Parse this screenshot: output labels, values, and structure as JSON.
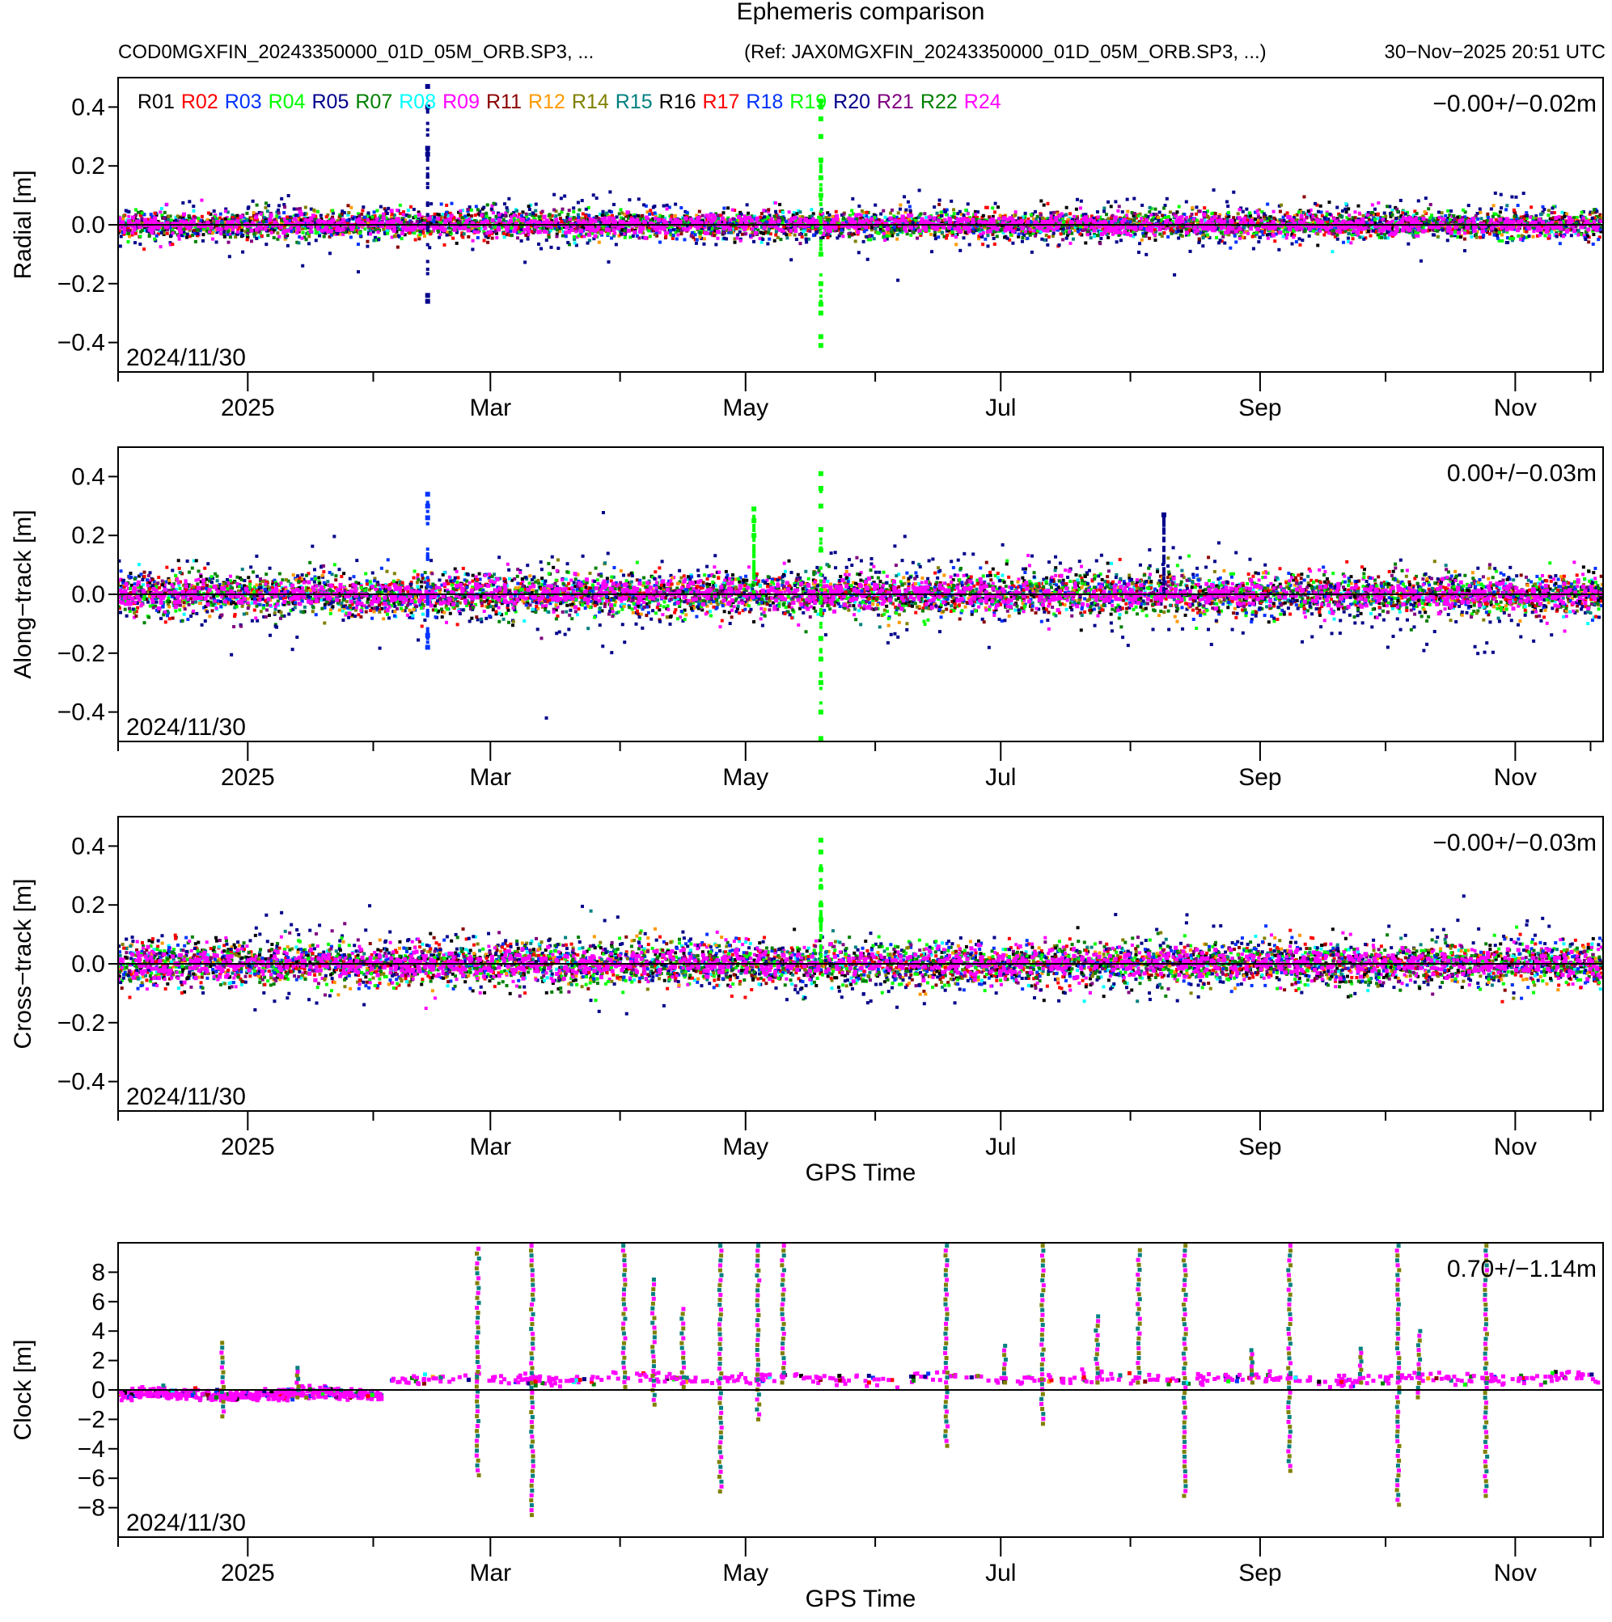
{
  "header": {
    "title": "Ephemeris comparison",
    "left_files": "COD0MGXFIN_20243350000_01D_05M_ORB.SP3, ...",
    "ref_files": "(Ref: JAX0MGXFIN_20243350000_01D_05M_ORB.SP3, ...)",
    "timestamp": "30−Nov−2025 20:51 UTC"
  },
  "legend": [
    {
      "label": "R01",
      "color": "#000000"
    },
    {
      "label": "R02",
      "color": "#ff0000"
    },
    {
      "label": "R03",
      "color": "#0033ff"
    },
    {
      "label": "R04",
      "color": "#00ff00"
    },
    {
      "label": "R05",
      "color": "#00008b"
    },
    {
      "label": "R07",
      "color": "#008000"
    },
    {
      "label": "R08",
      "color": "#00ffff"
    },
    {
      "label": "R09",
      "color": "#ff00ff"
    },
    {
      "label": "R11",
      "color": "#8b0000"
    },
    {
      "label": "R12",
      "color": "#ff9900"
    },
    {
      "label": "R14",
      "color": "#808000"
    },
    {
      "label": "R15",
      "color": "#008080"
    },
    {
      "label": "R16",
      "color": "#000000"
    },
    {
      "label": "R17",
      "color": "#ff0000"
    },
    {
      "label": "R18",
      "color": "#0033ff"
    },
    {
      "label": "R19",
      "color": "#00ff00"
    },
    {
      "label": "R20",
      "color": "#00008b"
    },
    {
      "label": "R21",
      "color": "#800080"
    },
    {
      "label": "R22",
      "color": "#008000"
    },
    {
      "label": "R24",
      "color": "#ff00ff"
    }
  ],
  "chart_data": [
    {
      "type": "scatter",
      "id": "radial",
      "ylabel": "Radial [m]",
      "xlabel": "",
      "ylim": [
        -0.5,
        0.5
      ],
      "yticks": [
        -0.4,
        -0.2,
        0.0,
        0.2,
        0.4
      ],
      "ytick_labels": [
        "−0.4",
        "−0.2",
        "0.0",
        "0.2",
        "0.4"
      ],
      "xlim": [
        0,
        355
      ],
      "x_ticks_minor": [
        0,
        61,
        120,
        181,
        242,
        303,
        352
      ],
      "x_ticks_major": [
        {
          "x": 31,
          "label": "2025"
        },
        {
          "x": 89,
          "label": "Mar"
        },
        {
          "x": 150,
          "label": "May"
        },
        {
          "x": 211,
          "label": "Jul"
        },
        {
          "x": 273,
          "label": "Sep"
        },
        {
          "x": 334,
          "label": "Nov"
        }
      ],
      "date_label": "2024/11/30",
      "stats": "−0.00+/−0.02m",
      "show_legend": true,
      "noise": {
        "base_sigma": 0.022,
        "r05_sigma": 0.045,
        "r05_bias": 0.0
      },
      "outliers": [
        {
          "x": 74,
          "values": [
            0.47,
            0.4,
            0.26,
            0.24,
            -0.24,
            -0.26
          ],
          "color": "#00008b"
        },
        {
          "x": 168,
          "values": [
            0.42,
            0.4,
            0.36,
            0.3,
            0.22,
            0.16,
            0.1,
            -0.1,
            -0.2,
            -0.27,
            -0.3,
            -0.38,
            -0.41
          ],
          "color": "#00ff00"
        }
      ]
    },
    {
      "type": "scatter",
      "id": "along",
      "ylabel": "Along−track [m]",
      "xlabel": "",
      "ylim": [
        -0.5,
        0.5
      ],
      "yticks": [
        -0.4,
        -0.2,
        0.0,
        0.2,
        0.4
      ],
      "ytick_labels": [
        "−0.4",
        "−0.2",
        "0.0",
        "0.2",
        "0.4"
      ],
      "xlim": [
        0,
        355
      ],
      "x_ticks_minor": [
        0,
        61,
        120,
        181,
        242,
        303,
        352
      ],
      "x_ticks_major": [
        {
          "x": 31,
          "label": "2025"
        },
        {
          "x": 89,
          "label": "Mar"
        },
        {
          "x": 150,
          "label": "May"
        },
        {
          "x": 211,
          "label": "Jul"
        },
        {
          "x": 273,
          "label": "Sep"
        },
        {
          "x": 334,
          "label": "Nov"
        }
      ],
      "date_label": "2024/11/30",
      "stats": "0.00+/−0.03m",
      "show_legend": false,
      "noise": {
        "base_sigma": 0.035,
        "r05_sigma": 0.07,
        "r05_bias": -0.03
      },
      "outliers": [
        {
          "x": 74,
          "values": [
            0.34,
            0.3,
            0.26,
            -0.14,
            -0.18
          ],
          "color": "#0033ff"
        },
        {
          "x": 168,
          "values": [
            0.41,
            0.36,
            0.3,
            0.22,
            0.15,
            -0.15,
            -0.22,
            -0.3,
            -0.4,
            -0.49
          ],
          "color": "#00ff00"
        },
        {
          "x": 152,
          "values": [
            0.29,
            0.25,
            0.2
          ],
          "color": "#00ff00"
        },
        {
          "x": 250,
          "values": [
            0.27
          ],
          "color": "#00008b"
        }
      ]
    },
    {
      "type": "scatter",
      "id": "cross",
      "ylabel": "Cross−track [m]",
      "xlabel": "GPS Time",
      "ylim": [
        -0.5,
        0.5
      ],
      "yticks": [
        -0.4,
        -0.2,
        0.0,
        0.2,
        0.4
      ],
      "ytick_labels": [
        "−0.4",
        "−0.2",
        "0.0",
        "0.2",
        "0.4"
      ],
      "xlim": [
        0,
        355
      ],
      "x_ticks_minor": [
        0,
        61,
        120,
        181,
        242,
        303,
        352
      ],
      "x_ticks_major": [
        {
          "x": 31,
          "label": "2025"
        },
        {
          "x": 89,
          "label": "Mar"
        },
        {
          "x": 150,
          "label": "May"
        },
        {
          "x": 211,
          "label": "Jul"
        },
        {
          "x": 273,
          "label": "Sep"
        },
        {
          "x": 334,
          "label": "Nov"
        }
      ],
      "date_label": "2024/11/30",
      "stats": "−0.00+/−0.03m",
      "show_legend": false,
      "noise": {
        "base_sigma": 0.035,
        "r05_sigma": 0.06,
        "r05_bias": 0.02
      },
      "outliers": [
        {
          "x": 168,
          "values": [
            0.42,
            0.38,
            0.32,
            0.26,
            0.2,
            0.15
          ],
          "color": "#00ff00"
        }
      ]
    },
    {
      "type": "scatter",
      "id": "clock",
      "ylabel": "Clock [m]",
      "xlabel": "GPS Time",
      "ylim": [
        -10,
        10
      ],
      "yticks": [
        -8,
        -6,
        -4,
        -2,
        0,
        2,
        4,
        6,
        8
      ],
      "ytick_labels": [
        "−8",
        "−6",
        "−4",
        "−2",
        "0",
        "2",
        "4",
        "6",
        "8"
      ],
      "xlim": [
        0,
        355
      ],
      "x_ticks_minor": [
        0,
        61,
        120,
        181,
        242,
        303,
        352
      ],
      "x_ticks_major": [
        {
          "x": 31,
          "label": "2025"
        },
        {
          "x": 89,
          "label": "Mar"
        },
        {
          "x": 150,
          "label": "May"
        },
        {
          "x": 211,
          "label": "Jul"
        },
        {
          "x": 273,
          "label": "Sep"
        },
        {
          "x": 334,
          "label": "Nov"
        }
      ],
      "date_label": "2024/11/30",
      "stats": "0.70+/−1.14m",
      "show_legend": false,
      "clock": {
        "baseline_segments": [
          {
            "x0": 0,
            "x1": 63,
            "y": -0.3
          },
          {
            "x0": 63,
            "x1": 355,
            "y": 0.75
          }
        ],
        "spikes": [
          {
            "x": 25,
            "min": -1.8,
            "max": 3.2
          },
          {
            "x": 43,
            "min": -0.5,
            "max": 1.5
          },
          {
            "x": 86,
            "min": -5.8,
            "max": 9.6
          },
          {
            "x": 99,
            "min": -8.5,
            "max": 9.8
          },
          {
            "x": 121,
            "min": 0.2,
            "max": 9.8
          },
          {
            "x": 128,
            "min": -1.0,
            "max": 7.5
          },
          {
            "x": 135,
            "min": 0.2,
            "max": 5.5
          },
          {
            "x": 144,
            "min": -6.9,
            "max": 9.8
          },
          {
            "x": 153,
            "min": -2.0,
            "max": 9.8
          },
          {
            "x": 159,
            "min": 0.5,
            "max": 9.8
          },
          {
            "x": 198,
            "min": -3.8,
            "max": 9.8
          },
          {
            "x": 212,
            "min": 0.5,
            "max": 3.0
          },
          {
            "x": 221,
            "min": -2.3,
            "max": 9.8
          },
          {
            "x": 234,
            "min": 0.5,
            "max": 5.0
          },
          {
            "x": 244,
            "min": 0.5,
            "max": 9.5
          },
          {
            "x": 255,
            "min": -7.2,
            "max": 9.8
          },
          {
            "x": 271,
            "min": 0.5,
            "max": 2.7
          },
          {
            "x": 280,
            "min": -5.5,
            "max": 9.8
          },
          {
            "x": 297,
            "min": 0.5,
            "max": 2.8
          },
          {
            "x": 306,
            "min": -7.8,
            "max": 9.8
          },
          {
            "x": 311,
            "min": -0.5,
            "max": 4.0
          },
          {
            "x": 327,
            "min": -7.2,
            "max": 9.8
          }
        ]
      }
    }
  ]
}
